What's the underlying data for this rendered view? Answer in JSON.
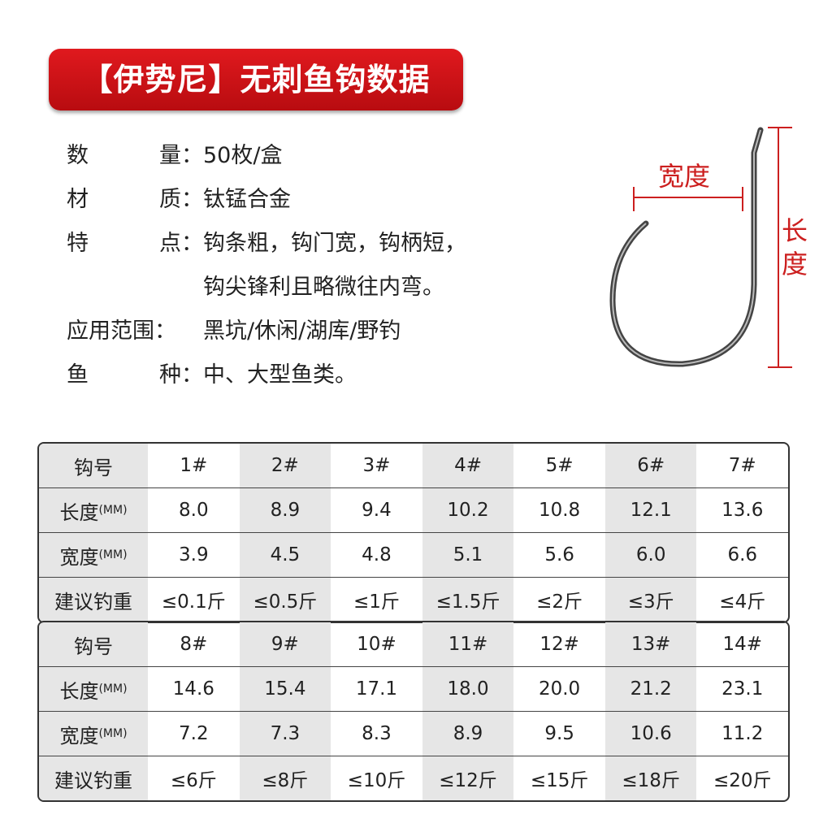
{
  "title": "【伊势尼】无刺鱼钩数据",
  "specs": [
    {
      "label_chars": [
        "数",
        "量："
      ],
      "value": "50枚/盒"
    },
    {
      "label_chars": [
        "材",
        "质："
      ],
      "value": "钛锰合金"
    },
    {
      "label_chars": [
        "特",
        "点："
      ],
      "value": "钩条粗，钩门宽，钩柄短，",
      "continuation": "钩尖锋利且略微往内弯。"
    },
    {
      "label_chars": [
        "应用范围："
      ],
      "value": "黑坑/休闲/湖库/野钓"
    },
    {
      "label_chars": [
        "鱼",
        "种："
      ],
      "value": "中、大型鱼类。"
    }
  ],
  "diagram": {
    "width_label": "宽度",
    "length_label": "长度",
    "accent": "#cc1f1f"
  },
  "row_labels": {
    "hook": "钩号",
    "length": "长度",
    "width": "宽度",
    "unit": "(MM)",
    "weight": "建议钓重"
  },
  "tables": [
    {
      "hook": [
        "1#",
        "2#",
        "3#",
        "4#",
        "5#",
        "6#",
        "7#"
      ],
      "length": [
        "8.0",
        "8.9",
        "9.4",
        "10.2",
        "10.8",
        "12.1",
        "13.6"
      ],
      "width": [
        "3.9",
        "4.5",
        "4.8",
        "5.1",
        "5.6",
        "6.0",
        "6.6"
      ],
      "weight": [
        "≤0.1斤",
        "≤0.5斤",
        "≤1斤",
        "≤1.5斤",
        "≤2斤",
        "≤3斤",
        "≤4斤"
      ]
    },
    {
      "hook": [
        "8#",
        "9#",
        "10#",
        "11#",
        "12#",
        "13#",
        "14#"
      ],
      "length": [
        "14.6",
        "15.4",
        "17.1",
        "18.0",
        "20.0",
        "21.2",
        "23.1"
      ],
      "width": [
        "7.2",
        "7.3",
        "8.3",
        "8.9",
        "9.5",
        "10.6",
        "11.2"
      ],
      "weight": [
        "≤6斤",
        "≤8斤",
        "≤10斤",
        "≤12斤",
        "≤15斤",
        "≤18斤",
        "≤20斤"
      ]
    }
  ]
}
